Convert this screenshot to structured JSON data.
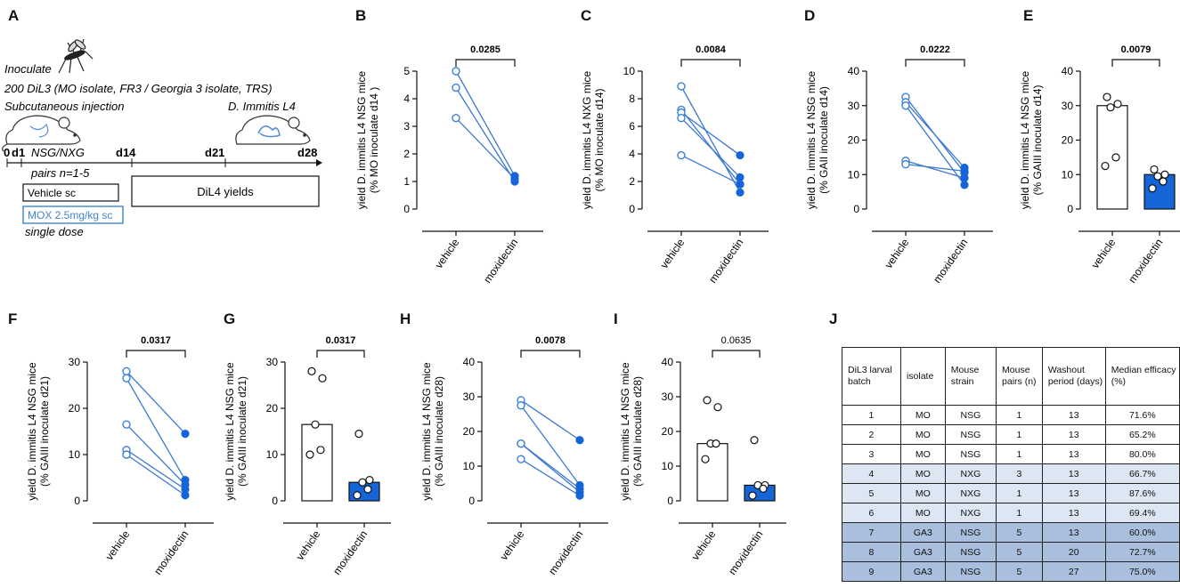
{
  "panel_labels": {
    "a": "A",
    "b": "B",
    "c": "C",
    "d": "D",
    "e": "E",
    "f": "F",
    "g": "G",
    "h": "H",
    "i": "I",
    "j": "J"
  },
  "schematic": {
    "inoculate_title": "Inoculate",
    "inoculate_detail": "200 DiL3 (MO isolate, FR3 / Georgia 3 isolate, TRS)",
    "injection": "Subcutaneous injection",
    "l4_label": "D. Immitis L4",
    "strains": "NSG/NXG",
    "pairs": "pairs n=1-5",
    "t0": "0",
    "t1": "d1",
    "t14": "d14",
    "t21": "d21",
    "t28": "d28",
    "vehicle_box": "Vehicle sc",
    "mox_box": "MOX 2.5mg/kg sc",
    "single_dose": "single dose",
    "yields_box": "DiL4 yields",
    "mox_color": "#3f86c9"
  },
  "colors": {
    "vehicle": "#3b82d6",
    "mox": "#1565d8",
    "line": "#3b78d0"
  },
  "chart_data": [
    {
      "id": "B",
      "type": "paired",
      "ylabel_1": "yield D. immitis L4 NSG mice",
      "ylabel_2": "(% MO inoculate d14 )",
      "ylim": [
        0,
        5
      ],
      "yticks": [
        0,
        1,
        2,
        3,
        4,
        5
      ],
      "categories": [
        "vehicle",
        "moxidectin"
      ],
      "pvalue": "0.0285",
      "pbold": true,
      "pairs": [
        [
          5.0,
          1.2
        ],
        [
          4.4,
          1.0
        ],
        [
          3.3,
          1.1
        ]
      ]
    },
    {
      "id": "C",
      "type": "paired",
      "ylabel_1": "yield D. immitis L4 NXG mice",
      "ylabel_2": "(% MO inoculate d14)",
      "ylim": [
        0,
        10
      ],
      "yticks": [
        0,
        2,
        4,
        6,
        8,
        10
      ],
      "categories": [
        "vehicle",
        "moxidectin"
      ],
      "pvalue": "0.0084",
      "pbold": true,
      "pairs": [
        [
          8.9,
          1.2
        ],
        [
          7.2,
          1.8
        ],
        [
          7.0,
          3.9
        ],
        [
          6.6,
          2.3
        ],
        [
          3.9,
          1.8
        ]
      ]
    },
    {
      "id": "D",
      "type": "paired",
      "ylabel_1": "yield D. immitis L4 NSG mice",
      "ylabel_2": "(% GAII inoculate d14)",
      "ylim": [
        0,
        40
      ],
      "yticks": [
        0,
        10,
        20,
        30,
        40
      ],
      "categories": [
        "vehicle",
        "moxidectin"
      ],
      "pvalue": "0.0222",
      "pbold": true,
      "pairs": [
        [
          32.5,
          10.5
        ],
        [
          31.0,
          12.0
        ],
        [
          30.0,
          7.0
        ],
        [
          14.0,
          9.0
        ],
        [
          13.0,
          11.0
        ]
      ]
    },
    {
      "id": "E",
      "type": "bar",
      "ylabel_1": "yield D. immitis L4 NSG mice",
      "ylabel_2": "(% GAIII inoculate d14)",
      "ylim": [
        0,
        40
      ],
      "yticks": [
        0,
        10,
        20,
        30,
        40
      ],
      "categories": [
        "vehicle",
        "moxidectin"
      ],
      "pvalue": "0.0079",
      "pbold": true,
      "bars": [
        30,
        10
      ],
      "points": [
        [
          32.5,
          30.5,
          29.5,
          15.0,
          12.5
        ],
        [
          11.5,
          10.0,
          9.5,
          8.0,
          6.0
        ]
      ]
    },
    {
      "id": "F",
      "type": "paired",
      "ylabel_1": "yield D. immitis L4 NSG mice",
      "ylabel_2": "(% GAIII inoculate d21)",
      "ylim": [
        0,
        30
      ],
      "yticks": [
        0,
        10,
        20,
        30
      ],
      "categories": [
        "vehicle",
        "moxidectin"
      ],
      "pvalue": "0.0317",
      "pbold": true,
      "pairs": [
        [
          28.0,
          14.5
        ],
        [
          26.5,
          4.5
        ],
        [
          16.5,
          3.5
        ],
        [
          11.0,
          2.5
        ],
        [
          10.0,
          1.2
        ]
      ]
    },
    {
      "id": "G",
      "type": "bar",
      "ylabel_1": "yield D. immitis L4 NSG mice",
      "ylabel_2": "(% GAIII inoculate d21)",
      "ylim": [
        0,
        30
      ],
      "yticks": [
        0,
        10,
        20,
        30
      ],
      "categories": [
        "vehicle",
        "moxidectin"
      ],
      "pvalue": "0.0317",
      "pbold": true,
      "bars": [
        16.5,
        4.0
      ],
      "points": [
        [
          28.0,
          26.5,
          16.5,
          11.0,
          10.0
        ],
        [
          14.5,
          4.5,
          4.0,
          2.5,
          1.2
        ]
      ]
    },
    {
      "id": "H",
      "type": "paired",
      "ylabel_1": "yield D. immitis L4 NSG mice",
      "ylabel_2": "(% GAIII inoculate d28)",
      "ylim": [
        0,
        40
      ],
      "yticks": [
        0,
        10,
        20,
        30,
        40
      ],
      "categories": [
        "vehicle",
        "moxidectin"
      ],
      "pvalue": "0.0078",
      "pbold": true,
      "pairs": [
        [
          29.0,
          17.5
        ],
        [
          27.5,
          4.5
        ],
        [
          16.5,
          3.5
        ],
        [
          16.5,
          2.5
        ],
        [
          12.0,
          1.5
        ]
      ]
    },
    {
      "id": "I",
      "type": "bar",
      "ylabel_1": "yield D. immitis L4 NSG mice",
      "ylabel_2": "(% GAIII inoculate d28)",
      "ylim": [
        0,
        40
      ],
      "yticks": [
        0,
        10,
        20,
        30,
        40
      ],
      "categories": [
        "vehicle",
        "moxidectin"
      ],
      "pvalue": "0.0635",
      "pbold": false,
      "bars": [
        16.5,
        4.5
      ],
      "points": [
        [
          29.0,
          27.0,
          16.5,
          16.5,
          12.0
        ],
        [
          17.5,
          4.5,
          4.5,
          3.5,
          1.5
        ]
      ]
    }
  ],
  "table": {
    "headers": [
      "DiL3 larval batch",
      "isolate",
      "Mouse strain",
      "Mouse pairs (n)",
      "Washout period (days)",
      "Median efficacy (%)"
    ],
    "rows": [
      [
        "1",
        "MO",
        "NSG",
        "1",
        "13",
        "71.6%"
      ],
      [
        "2",
        "MO",
        "NSG",
        "1",
        "13",
        "65.2%"
      ],
      [
        "3",
        "MO",
        "NSG",
        "1",
        "13",
        "80.0%"
      ],
      [
        "4",
        "MO",
        "NXG",
        "3",
        "13",
        "66.7%"
      ],
      [
        "5",
        "MO",
        "NXG",
        "1",
        "13",
        "87.6%"
      ],
      [
        "6",
        "MO",
        "NXG",
        "1",
        "13",
        "69.4%"
      ],
      [
        "7",
        "GA3",
        "NSG",
        "5",
        "13",
        "60.0%"
      ],
      [
        "8",
        "GA3",
        "NSG",
        "5",
        "20",
        "72.7%"
      ],
      [
        "9",
        "GA3",
        "NSG",
        "5",
        "27",
        "75.0%"
      ]
    ]
  }
}
